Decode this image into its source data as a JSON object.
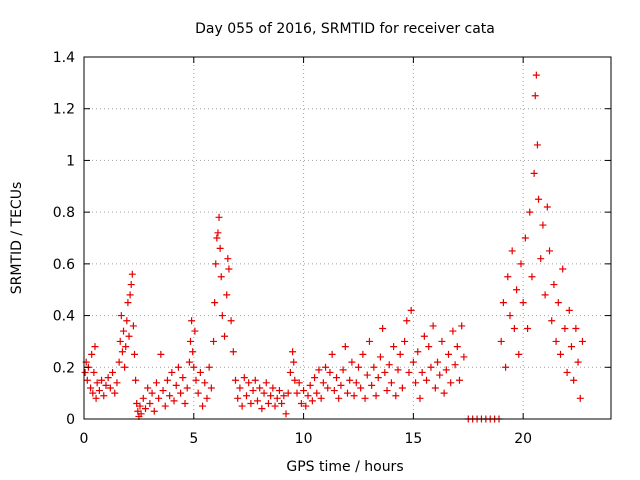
{
  "chart_data": {
    "type": "scatter",
    "title": "Day 055 of 2016, SRMTID for receiver cata",
    "xlabel": "GPS time / hours",
    "ylabel": "SRMTID / TECUs",
    "xlim": [
      0,
      24
    ],
    "ylim": [
      0,
      1.4
    ],
    "x_ticks": [
      0,
      5,
      10,
      15,
      20
    ],
    "x_tick_labels": [
      "0",
      "5",
      "10",
      "15",
      "20"
    ],
    "y_ticks": [
      0,
      0.2,
      0.4,
      0.6,
      0.8,
      1,
      1.2,
      1.4
    ],
    "y_tick_labels": [
      "0",
      "0.2",
      "0.4",
      "0.6",
      "0.8",
      "1",
      "1.2",
      "1.4"
    ],
    "grid": true,
    "legend": "none",
    "marker": "plus",
    "colors": {
      "series": "#e60000",
      "grid": "#a0a0a0",
      "axis": "#000000"
    },
    "series": [
      {
        "name": "SRMTID",
        "points": [
          [
            0.05,
            0.18
          ],
          [
            0.1,
            0.22
          ],
          [
            0.15,
            0.15
          ],
          [
            0.2,
            0.2
          ],
          [
            0.3,
            0.12
          ],
          [
            0.35,
            0.25
          ],
          [
            0.4,
            0.1
          ],
          [
            0.45,
            0.18
          ],
          [
            0.5,
            0.28
          ],
          [
            0.55,
            0.08
          ],
          [
            0.6,
            0.14
          ],
          [
            0.7,
            0.11
          ],
          [
            0.8,
            0.15
          ],
          [
            0.9,
            0.09
          ],
          [
            1.0,
            0.13
          ],
          [
            1.1,
            0.16
          ],
          [
            1.2,
            0.12
          ],
          [
            1.3,
            0.18
          ],
          [
            1.4,
            0.1
          ],
          [
            1.5,
            0.14
          ],
          [
            1.6,
            0.22
          ],
          [
            1.65,
            0.3
          ],
          [
            1.7,
            0.4
          ],
          [
            1.75,
            0.26
          ],
          [
            1.8,
            0.34
          ],
          [
            1.85,
            0.2
          ],
          [
            1.9,
            0.28
          ],
          [
            1.95,
            0.38
          ],
          [
            2.0,
            0.45
          ],
          [
            2.05,
            0.32
          ],
          [
            2.1,
            0.48
          ],
          [
            2.15,
            0.52
          ],
          [
            2.2,
            0.56
          ],
          [
            2.25,
            0.36
          ],
          [
            2.3,
            0.25
          ],
          [
            2.35,
            0.15
          ],
          [
            2.4,
            0.06
          ],
          [
            2.45,
            0.03
          ],
          [
            2.5,
            0.01
          ],
          [
            2.55,
            0.05
          ],
          [
            2.6,
            0.02
          ],
          [
            2.7,
            0.08
          ],
          [
            2.8,
            0.04
          ],
          [
            2.9,
            0.12
          ],
          [
            3.0,
            0.06
          ],
          [
            3.1,
            0.1
          ],
          [
            3.2,
            0.03
          ],
          [
            3.3,
            0.14
          ],
          [
            3.4,
            0.08
          ],
          [
            3.5,
            0.25
          ],
          [
            3.6,
            0.11
          ],
          [
            3.7,
            0.05
          ],
          [
            3.8,
            0.15
          ],
          [
            3.9,
            0.09
          ],
          [
            4.0,
            0.18
          ],
          [
            4.1,
            0.07
          ],
          [
            4.2,
            0.13
          ],
          [
            4.3,
            0.2
          ],
          [
            4.4,
            0.1
          ],
          [
            4.5,
            0.16
          ],
          [
            4.6,
            0.06
          ],
          [
            4.7,
            0.12
          ],
          [
            4.8,
            0.22
          ],
          [
            4.85,
            0.3
          ],
          [
            4.9,
            0.38
          ],
          [
            4.95,
            0.26
          ],
          [
            5.0,
            0.2
          ],
          [
            5.05,
            0.34
          ],
          [
            5.1,
            0.15
          ],
          [
            5.2,
            0.1
          ],
          [
            5.3,
            0.18
          ],
          [
            5.4,
            0.05
          ],
          [
            5.5,
            0.14
          ],
          [
            5.6,
            0.08
          ],
          [
            5.7,
            0.2
          ],
          [
            5.8,
            0.12
          ],
          [
            5.9,
            0.3
          ],
          [
            5.95,
            0.45
          ],
          [
            6.0,
            0.6
          ],
          [
            6.05,
            0.7
          ],
          [
            6.1,
            0.72
          ],
          [
            6.15,
            0.78
          ],
          [
            6.2,
            0.66
          ],
          [
            6.25,
            0.55
          ],
          [
            6.3,
            0.4
          ],
          [
            6.4,
            0.32
          ],
          [
            6.5,
            0.48
          ],
          [
            6.55,
            0.62
          ],
          [
            6.6,
            0.58
          ],
          [
            6.7,
            0.38
          ],
          [
            6.8,
            0.26
          ],
          [
            6.9,
            0.15
          ],
          [
            7.0,
            0.08
          ],
          [
            7.1,
            0.12
          ],
          [
            7.2,
            0.05
          ],
          [
            7.3,
            0.16
          ],
          [
            7.4,
            0.09
          ],
          [
            7.5,
            0.14
          ],
          [
            7.6,
            0.06
          ],
          [
            7.7,
            0.11
          ],
          [
            7.8,
            0.15
          ],
          [
            7.9,
            0.07
          ],
          [
            8.0,
            0.12
          ],
          [
            8.1,
            0.04
          ],
          [
            8.2,
            0.1
          ],
          [
            8.3,
            0.14
          ],
          [
            8.4,
            0.06
          ],
          [
            8.5,
            0.09
          ],
          [
            8.6,
            0.12
          ],
          [
            8.7,
            0.05
          ],
          [
            8.8,
            0.08
          ],
          [
            8.9,
            0.11
          ],
          [
            9.0,
            0.06
          ],
          [
            9.1,
            0.09
          ],
          [
            9.2,
            0.02
          ],
          [
            9.3,
            0.1
          ],
          [
            9.4,
            0.18
          ],
          [
            9.5,
            0.26
          ],
          [
            9.55,
            0.22
          ],
          [
            9.6,
            0.15
          ],
          [
            9.7,
            0.1
          ],
          [
            9.8,
            0.14
          ],
          [
            9.9,
            0.06
          ],
          [
            10.0,
            0.11
          ],
          [
            10.1,
            0.05
          ],
          [
            10.2,
            0.09
          ],
          [
            10.3,
            0.13
          ],
          [
            10.4,
            0.07
          ],
          [
            10.5,
            0.16
          ],
          [
            10.6,
            0.1
          ],
          [
            10.7,
            0.19
          ],
          [
            10.8,
            0.08
          ],
          [
            10.9,
            0.14
          ],
          [
            11.0,
            0.2
          ],
          [
            11.1,
            0.12
          ],
          [
            11.2,
            0.18
          ],
          [
            11.3,
            0.25
          ],
          [
            11.4,
            0.11
          ],
          [
            11.5,
            0.16
          ],
          [
            11.6,
            0.08
          ],
          [
            11.7,
            0.13
          ],
          [
            11.8,
            0.19
          ],
          [
            11.9,
            0.28
          ],
          [
            12.0,
            0.1
          ],
          [
            12.1,
            0.15
          ],
          [
            12.2,
            0.22
          ],
          [
            12.3,
            0.09
          ],
          [
            12.4,
            0.14
          ],
          [
            12.5,
            0.2
          ],
          [
            12.6,
            0.12
          ],
          [
            12.7,
            0.25
          ],
          [
            12.8,
            0.08
          ],
          [
            12.9,
            0.17
          ],
          [
            13.0,
            0.3
          ],
          [
            13.1,
            0.13
          ],
          [
            13.2,
            0.2
          ],
          [
            13.3,
            0.09
          ],
          [
            13.4,
            0.16
          ],
          [
            13.5,
            0.24
          ],
          [
            13.6,
            0.35
          ],
          [
            13.7,
            0.18
          ],
          [
            13.8,
            0.11
          ],
          [
            13.9,
            0.21
          ],
          [
            14.0,
            0.14
          ],
          [
            14.1,
            0.28
          ],
          [
            14.2,
            0.09
          ],
          [
            14.3,
            0.19
          ],
          [
            14.4,
            0.25
          ],
          [
            14.5,
            0.12
          ],
          [
            14.6,
            0.3
          ],
          [
            14.7,
            0.38
          ],
          [
            14.8,
            0.18
          ],
          [
            14.9,
            0.42
          ],
          [
            15.0,
            0.22
          ],
          [
            15.1,
            0.14
          ],
          [
            15.2,
            0.26
          ],
          [
            15.3,
            0.08
          ],
          [
            15.4,
            0.18
          ],
          [
            15.5,
            0.32
          ],
          [
            15.6,
            0.15
          ],
          [
            15.7,
            0.28
          ],
          [
            15.8,
            0.2
          ],
          [
            15.9,
            0.36
          ],
          [
            16.0,
            0.12
          ],
          [
            16.1,
            0.22
          ],
          [
            16.2,
            0.17
          ],
          [
            16.3,
            0.3
          ],
          [
            16.4,
            0.1
          ],
          [
            16.5,
            0.19
          ],
          [
            16.6,
            0.25
          ],
          [
            16.7,
            0.14
          ],
          [
            16.8,
            0.34
          ],
          [
            16.9,
            0.21
          ],
          [
            17.0,
            0.28
          ],
          [
            17.1,
            0.15
          ],
          [
            17.2,
            0.36
          ],
          [
            17.3,
            0.24
          ],
          [
            17.5,
            0.0
          ],
          [
            17.7,
            0.0
          ],
          [
            17.9,
            0.0
          ],
          [
            18.1,
            0.0
          ],
          [
            18.3,
            0.0
          ],
          [
            18.5,
            0.0
          ],
          [
            18.7,
            0.0
          ],
          [
            18.9,
            0.0
          ],
          [
            19.0,
            0.3
          ],
          [
            19.1,
            0.45
          ],
          [
            19.2,
            0.2
          ],
          [
            19.3,
            0.55
          ],
          [
            19.4,
            0.4
          ],
          [
            19.5,
            0.65
          ],
          [
            19.6,
            0.35
          ],
          [
            19.7,
            0.5
          ],
          [
            19.8,
            0.25
          ],
          [
            19.9,
            0.6
          ],
          [
            20.0,
            0.45
          ],
          [
            20.1,
            0.7
          ],
          [
            20.2,
            0.35
          ],
          [
            20.3,
            0.8
          ],
          [
            20.4,
            0.55
          ],
          [
            20.5,
            0.95
          ],
          [
            20.55,
            1.25
          ],
          [
            20.6,
            1.33
          ],
          [
            20.65,
            1.06
          ],
          [
            20.7,
            0.85
          ],
          [
            20.8,
            0.62
          ],
          [
            20.9,
            0.75
          ],
          [
            21.0,
            0.48
          ],
          [
            21.1,
            0.82
          ],
          [
            21.2,
            0.65
          ],
          [
            21.3,
            0.38
          ],
          [
            21.4,
            0.52
          ],
          [
            21.5,
            0.3
          ],
          [
            21.6,
            0.45
          ],
          [
            21.7,
            0.25
          ],
          [
            21.8,
            0.58
          ],
          [
            21.9,
            0.35
          ],
          [
            22.0,
            0.18
          ],
          [
            22.1,
            0.42
          ],
          [
            22.2,
            0.28
          ],
          [
            22.3,
            0.15
          ],
          [
            22.4,
            0.35
          ],
          [
            22.5,
            0.22
          ],
          [
            22.6,
            0.08
          ],
          [
            22.7,
            0.3
          ]
        ]
      }
    ]
  }
}
